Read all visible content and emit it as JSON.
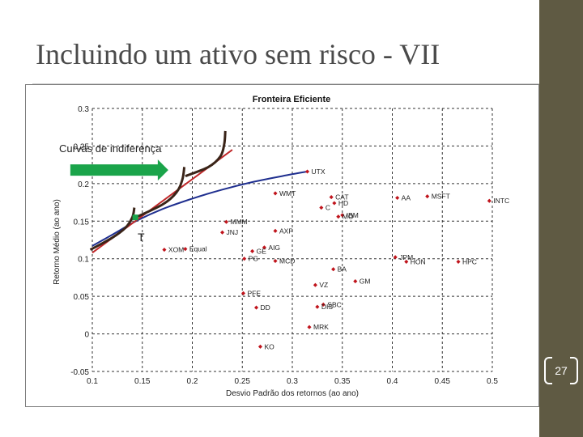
{
  "slide": {
    "title": "Incluindo um ativo sem risco - VII",
    "page_number": "27"
  },
  "annotations": {
    "indifference_label": "Curvas de indiferença",
    "tangency_label": "T"
  },
  "colors": {
    "sidebar": "#5f5a43",
    "frontier": "#1f2f8f",
    "cml": "#c0282a",
    "indifference_curves": "#3a2418",
    "arrow": "#1aa44a",
    "points": "#c0141c"
  },
  "chart_data": {
    "type": "scatter",
    "title": "Fronteira Eficiente",
    "xlabel": "Desvio Padrão dos retornos (ao ano)",
    "ylabel": "Retorno Médio (ao ano)",
    "xlim": [
      0.1,
      0.5
    ],
    "ylim": [
      -0.05,
      0.3
    ],
    "xticks": [
      "0.1",
      "0.15",
      "0.2",
      "0.25",
      "0.3",
      "0.35",
      "0.4",
      "0.45",
      "0.5"
    ],
    "yticks": [
      "0.3",
      "0.25",
      "0.2",
      "0.15",
      "0.1",
      "0.05",
      "0",
      "-0.05"
    ],
    "grid": true,
    "points": [
      {
        "label": "UTX",
        "x": 0.315,
        "y": 0.216
      },
      {
        "label": "WMT",
        "x": 0.283,
        "y": 0.187
      },
      {
        "label": "CAT",
        "x": 0.339,
        "y": 0.182
      },
      {
        "label": "HD",
        "x": 0.342,
        "y": 0.174
      },
      {
        "label": "C",
        "x": 0.329,
        "y": 0.168
      },
      {
        "label": "IBM",
        "x": 0.35,
        "y": 0.158
      },
      {
        "label": "MO",
        "x": 0.346,
        "y": 0.156
      },
      {
        "label": "AA",
        "x": 0.405,
        "y": 0.181
      },
      {
        "label": "MSFT",
        "x": 0.435,
        "y": 0.183
      },
      {
        "label": "INTC",
        "x": 0.497,
        "y": 0.177
      },
      {
        "label": "MMM",
        "x": 0.234,
        "y": 0.149
      },
      {
        "label": "JNJ",
        "x": 0.23,
        "y": 0.135
      },
      {
        "label": "AXP",
        "x": 0.283,
        "y": 0.137
      },
      {
        "label": "Equal",
        "x": 0.193,
        "y": 0.113
      },
      {
        "label": "XOM",
        "x": 0.172,
        "y": 0.112
      },
      {
        "label": "AIG",
        "x": 0.272,
        "y": 0.115
      },
      {
        "label": "GE",
        "x": 0.26,
        "y": 0.11
      },
      {
        "label": "PG",
        "x": 0.252,
        "y": 0.1
      },
      {
        "label": "MCD",
        "x": 0.283,
        "y": 0.097
      },
      {
        "label": "JPM",
        "x": 0.403,
        "y": 0.102
      },
      {
        "label": "HON",
        "x": 0.414,
        "y": 0.096
      },
      {
        "label": "HPC",
        "x": 0.466,
        "y": 0.096
      },
      {
        "label": "BA",
        "x": 0.341,
        "y": 0.086
      },
      {
        "label": "GM",
        "x": 0.363,
        "y": 0.07
      },
      {
        "label": "VZ",
        "x": 0.323,
        "y": 0.065
      },
      {
        "label": "PFE",
        "x": 0.251,
        "y": 0.054
      },
      {
        "label": "DD",
        "x": 0.264,
        "y": 0.035
      },
      {
        "label": "SBC",
        "x": 0.331,
        "y": 0.039
      },
      {
        "label": "DIS",
        "x": 0.325,
        "y": 0.036
      },
      {
        "label": "MRK",
        "x": 0.317,
        "y": 0.009
      },
      {
        "label": "KO",
        "x": 0.268,
        "y": -0.017
      }
    ],
    "frontier": [
      {
        "x": 0.1,
        "y": 0.117
      },
      {
        "x": 0.12,
        "y": 0.132
      },
      {
        "x": 0.145,
        "y": 0.151
      },
      {
        "x": 0.17,
        "y": 0.166
      },
      {
        "x": 0.2,
        "y": 0.18
      },
      {
        "x": 0.23,
        "y": 0.192
      },
      {
        "x": 0.26,
        "y": 0.202
      },
      {
        "x": 0.29,
        "y": 0.21
      },
      {
        "x": 0.315,
        "y": 0.216
      }
    ],
    "tangency_point": {
      "x": 0.143,
      "y": 0.155
    },
    "capital_market_line": [
      {
        "x": 0.1,
        "y": 0.108
      },
      {
        "x": 0.24,
        "y": 0.245
      }
    ],
    "indifference_curves": [
      [
        {
          "x": 0.098,
          "y": 0.112
        },
        {
          "x": 0.12,
          "y": 0.128
        },
        {
          "x": 0.133,
          "y": 0.141
        },
        {
          "x": 0.14,
          "y": 0.155
        },
        {
          "x": 0.142,
          "y": 0.168
        }
      ],
      [
        {
          "x": 0.14,
          "y": 0.153
        },
        {
          "x": 0.17,
          "y": 0.172
        },
        {
          "x": 0.184,
          "y": 0.188
        },
        {
          "x": 0.19,
          "y": 0.205
        },
        {
          "x": 0.192,
          "y": 0.222
        }
      ],
      [
        {
          "x": 0.193,
          "y": 0.21
        },
        {
          "x": 0.216,
          "y": 0.222
        },
        {
          "x": 0.228,
          "y": 0.236
        },
        {
          "x": 0.232,
          "y": 0.253
        },
        {
          "x": 0.233,
          "y": 0.27
        }
      ]
    ],
    "arrow": {
      "from": {
        "x": 0.078,
        "y": 0.218
      },
      "to": {
        "x": 0.176,
        "y": 0.218
      }
    }
  }
}
